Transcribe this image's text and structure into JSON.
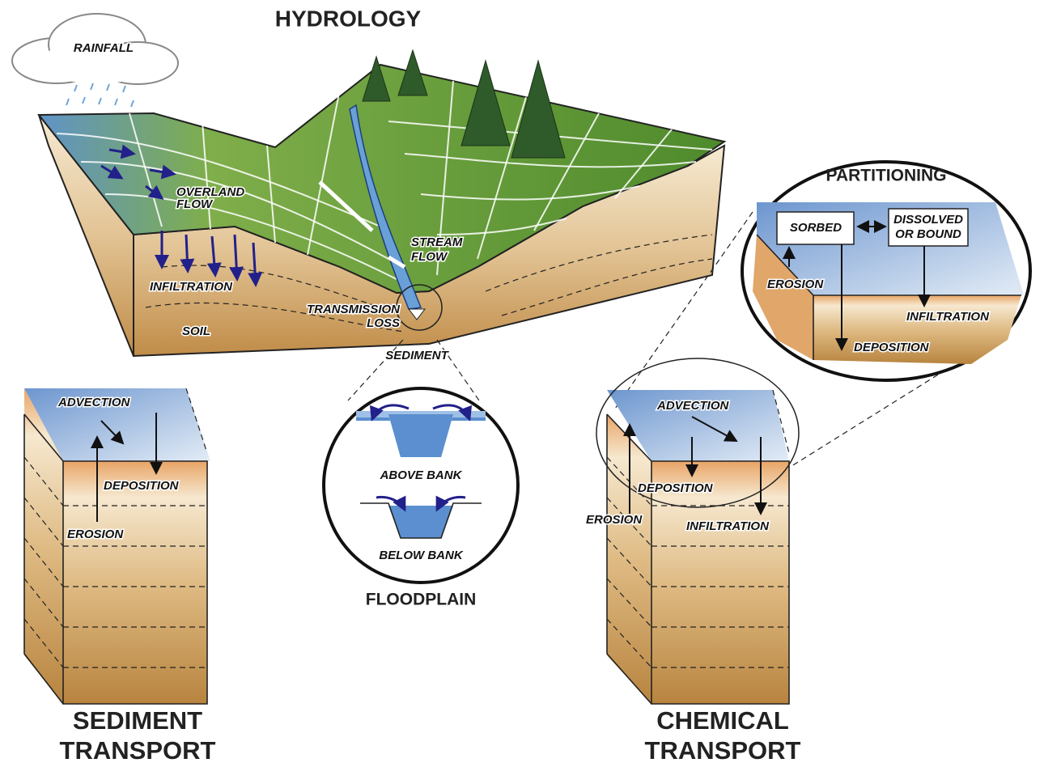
{
  "hydrology": {
    "title": "HYDROLOGY",
    "rainfall": "RAINFALL",
    "overland_flow": [
      "OVERLAND",
      "FLOW"
    ],
    "stream_flow": [
      "STREAM",
      "FLOW"
    ],
    "infiltration": "INFILTRATION",
    "transmission_loss": [
      "TRANSMISSION",
      "LOSS"
    ],
    "soil": "SOIL",
    "sediment": "SEDIMENT"
  },
  "floodplain": {
    "title": "FLOODPLAIN",
    "above_bank": "ABOVE BANK",
    "below_bank": "BELOW BANK"
  },
  "partitioning": {
    "title": "PARTITIONING",
    "sorbed": "SORBED",
    "dissolved_or_bound": [
      "DISSOLVED",
      "OR BOUND"
    ],
    "erosion": "EROSION",
    "infiltration": "INFILTRATION",
    "deposition": "DEPOSITION"
  },
  "sediment_transport": {
    "title": [
      "SEDIMENT",
      "TRANSPORT"
    ],
    "advection": "ADVECTION",
    "deposition": "DEPOSITION",
    "erosion": "EROSION"
  },
  "chemical_transport": {
    "title": [
      "CHEMICAL",
      "TRANSPORT"
    ],
    "advection": "ADVECTION",
    "deposition": "DEPOSITION",
    "erosion": "EROSION",
    "infiltration": "INFILTRATION"
  }
}
